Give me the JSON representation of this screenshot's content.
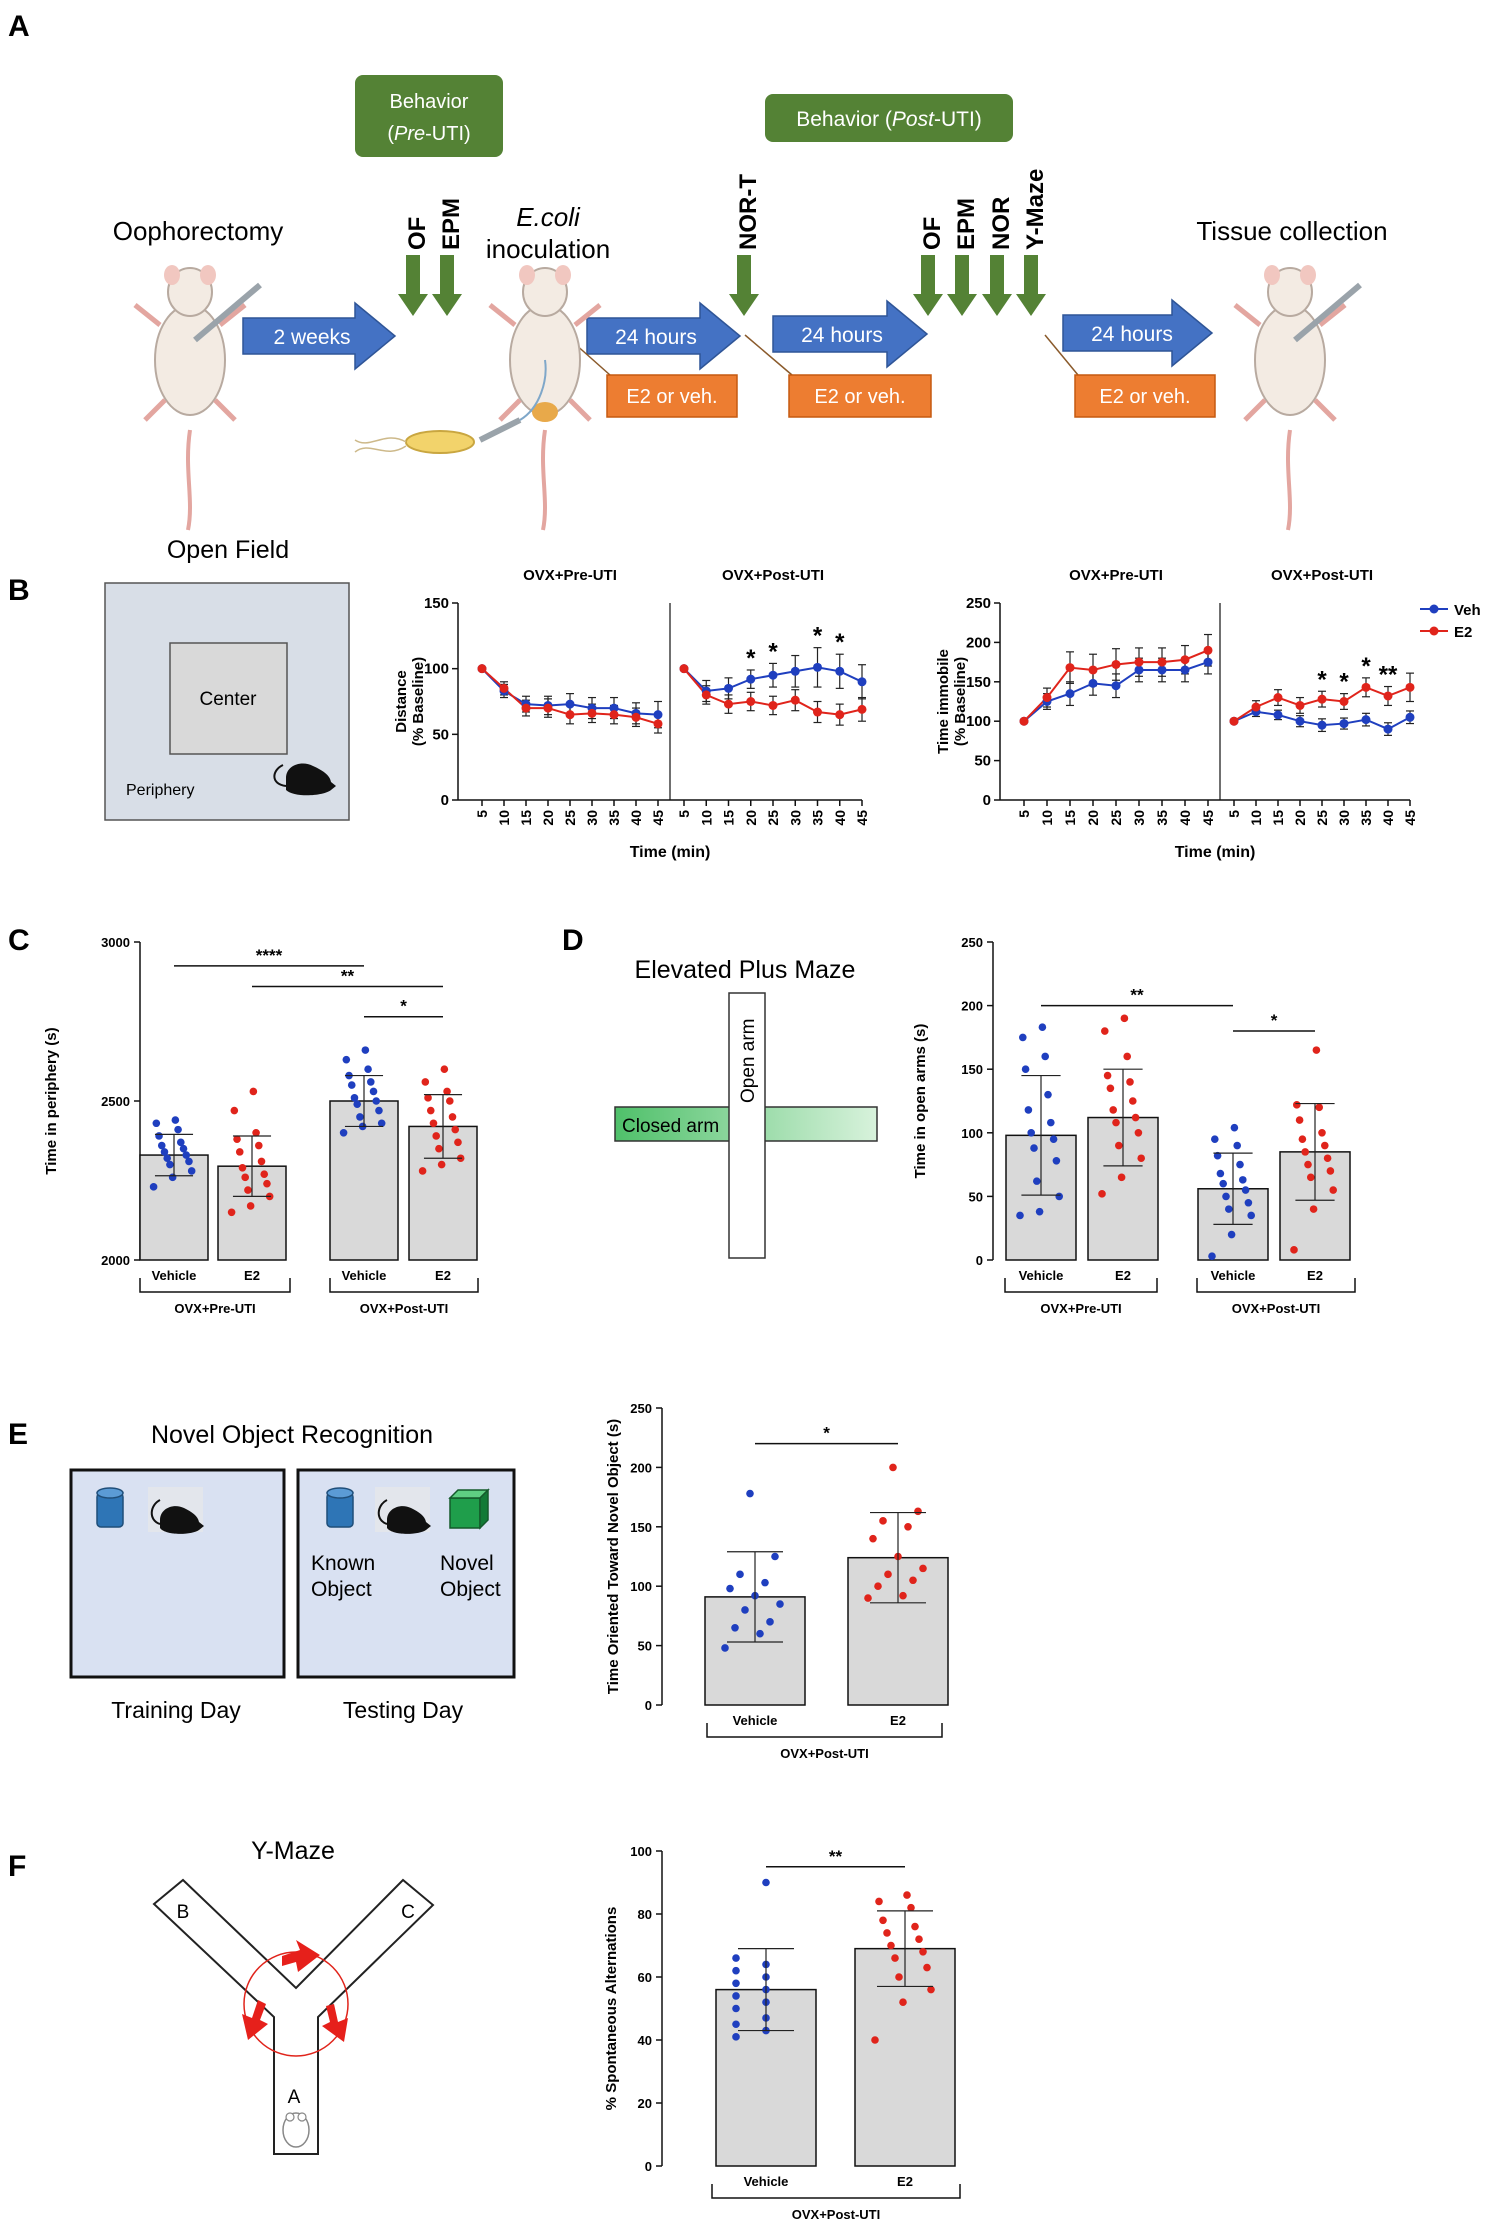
{
  "panels": {
    "A": "A",
    "B": "B",
    "C": "C",
    "D": "D",
    "E": "E",
    "F": "F"
  },
  "timeline": {
    "behavior_pre": [
      "Behavior",
      "(",
      "Pre",
      "-UTI)"
    ],
    "behavior_post": [
      "Behavior (",
      "Post",
      "-UTI)"
    ],
    "oophorectomy": "Oophorectomy",
    "ecoli": "E.coli",
    "inoculation": "inoculation",
    "tissue": "Tissue collection",
    "two_weeks": "2 weeks",
    "h24": "24 hours",
    "e2veh": "E2 or veh.",
    "tests_pre": [
      "OF",
      "EPM"
    ],
    "nort": "NOR-T",
    "tests_post": [
      "OF",
      "EPM",
      "NOR",
      "Y-Maze"
    ]
  },
  "open_field": {
    "title": "Open Field",
    "center": "Center",
    "periphery": "Periphery"
  },
  "epm": {
    "title": "Elevated Plus Maze",
    "open_arm": "Open arm",
    "closed_arm": "Closed arm"
  },
  "nor": {
    "title": "Novel Object Recognition",
    "training": "Training Day",
    "testing": "Testing Day",
    "known": [
      "Known",
      "Object"
    ],
    "novel": [
      "Novel",
      "Object"
    ]
  },
  "ymaze": {
    "title": "Y-Maze",
    "arms": [
      "A",
      "B",
      "C"
    ]
  },
  "colors": {
    "veh": "#1f3fbf",
    "e2": "#e0241b",
    "bar": "#d9d9d9",
    "green_box": "#548235",
    "arrow_blue": "#4472c4",
    "orange_box": "#ed7d31"
  },
  "chart_data": [
    {
      "id": "distance",
      "type": "line",
      "ylabel": [
        "Distance",
        "(% Baseline)"
      ],
      "xlabel": "Time (min)",
      "ylim": [
        0,
        150
      ],
      "yticks": [
        0,
        50,
        100,
        150
      ],
      "sections": [
        "OVX+Pre-UTI",
        "OVX+Post-UTI"
      ],
      "x": [
        5,
        10,
        15,
        20,
        25,
        30,
        35,
        40,
        45
      ],
      "series": [
        {
          "name": "Veh",
          "color": "#1f3fbf",
          "values": [
            [
              100,
              83,
              73,
              72,
              73,
              70,
              70,
              66,
              65
            ],
            [
              100,
              83,
              85,
              92,
              95,
              98,
              101,
              98,
              90
            ]
          ],
          "err": [
            [
              0,
              5,
              6,
              7,
              8,
              8,
              8,
              8,
              10
            ],
            [
              0,
              8,
              8,
              7,
              9,
              12,
              15,
              13,
              13
            ]
          ]
        },
        {
          "name": "E2",
          "color": "#e0241b",
          "values": [
            [
              100,
              85,
              70,
              70,
              65,
              66,
              65,
              63,
              58
            ],
            [
              100,
              80,
              73,
              75,
              72,
              76,
              67,
              65,
              69
            ]
          ],
          "err": [
            [
              0,
              5,
              6,
              7,
              7,
              7,
              7,
              7,
              7
            ],
            [
              0,
              7,
              7,
              7,
              7,
              8,
              8,
              8,
              9
            ]
          ]
        }
      ],
      "significance": [
        [],
        [
          "",
          "",
          "",
          "*",
          "*",
          "",
          "*",
          "*",
          ""
        ]
      ]
    },
    {
      "id": "immobile",
      "type": "line",
      "ylabel": [
        "Time immobile",
        "(% Baseline)"
      ],
      "xlabel": "Time (min)",
      "ylim": [
        0,
        250
      ],
      "yticks": [
        0,
        50,
        100,
        150,
        200,
        250
      ],
      "sections": [
        "OVX+Pre-UTI",
        "OVX+Post-UTI"
      ],
      "legend": [
        "Veh",
        "E2"
      ],
      "x": [
        5,
        10,
        15,
        20,
        25,
        30,
        35,
        40,
        45
      ],
      "series": [
        {
          "name": "Veh",
          "color": "#1f3fbf",
          "values": [
            [
              100,
              125,
              135,
              148,
              145,
              165,
              165,
              165,
              175
            ],
            [
              100,
              112,
              108,
              100,
              95,
              97,
              102,
              90,
              105
            ]
          ],
          "err": [
            [
              0,
              10,
              15,
              15,
              15,
              15,
              15,
              15,
              15
            ],
            [
              0,
              6,
              6,
              7,
              8,
              7,
              8,
              8,
              8
            ]
          ]
        },
        {
          "name": "E2",
          "color": "#e0241b",
          "values": [
            [
              100,
              130,
              168,
              165,
              172,
              175,
              175,
              178,
              190
            ],
            [
              100,
              118,
              130,
              120,
              128,
              125,
              143,
              132,
              143
            ]
          ],
          "err": [
            [
              0,
              12,
              20,
              20,
              20,
              18,
              18,
              18,
              20
            ],
            [
              0,
              8,
              10,
              10,
              10,
              10,
              12,
              12,
              18
            ]
          ]
        }
      ],
      "significance": [
        [],
        [
          "",
          "",
          "",
          "",
          "*",
          "*",
          "*",
          "**",
          ""
        ]
      ]
    },
    {
      "id": "periphery",
      "type": "bar",
      "ylabel": "Time in periphery (s)",
      "ylim": [
        2000,
        3000
      ],
      "yticks": [
        2000,
        2500,
        3000
      ],
      "categories": [
        "Vehicle",
        "E2",
        "Vehicle",
        "E2"
      ],
      "groups": [
        "OVX+Pre-UTI",
        "OVX+Post-UTI"
      ],
      "values": [
        2330,
        2295,
        2500,
        2420
      ],
      "sd": [
        65,
        95,
        80,
        100
      ],
      "point_colors": [
        "#1f3fbf",
        "#e0241b",
        "#1f3fbf",
        "#e0241b"
      ],
      "points": [
        [
          2230,
          2260,
          2280,
          2300,
          2310,
          2320,
          2330,
          2340,
          2350,
          2360,
          2370,
          2390,
          2410,
          2430,
          2440
        ],
        [
          2150,
          2170,
          2200,
          2220,
          2240,
          2260,
          2270,
          2290,
          2310,
          2340,
          2360,
          2380,
          2400,
          2470,
          2530
        ],
        [
          2400,
          2420,
          2430,
          2450,
          2470,
          2490,
          2500,
          2510,
          2530,
          2550,
          2560,
          2580,
          2600,
          2630,
          2660
        ],
        [
          2280,
          2300,
          2320,
          2350,
          2370,
          2390,
          2410,
          2430,
          2450,
          2470,
          2500,
          2510,
          2530,
          2560,
          2600
        ]
      ],
      "brackets": [
        {
          "from": 0,
          "to": 2,
          "label": "****",
          "y": 2925
        },
        {
          "from": 1,
          "to": 3,
          "label": "**",
          "y": 2860
        },
        {
          "from": 2,
          "to": 3,
          "label": "*",
          "y": 2765
        }
      ]
    },
    {
      "id": "openarms",
      "type": "bar",
      "ylabel": "Time in open arms (s)",
      "ylim": [
        0,
        250
      ],
      "yticks": [
        0,
        50,
        100,
        150,
        200,
        250
      ],
      "categories": [
        "Vehicle",
        "E2",
        "Vehicle",
        "E2"
      ],
      "groups": [
        "OVX+Pre-UTI",
        "OVX+Post-UTI"
      ],
      "values": [
        98,
        112,
        56,
        85
      ],
      "sd": [
        47,
        38,
        28,
        38
      ],
      "point_colors": [
        "#1f3fbf",
        "#e0241b",
        "#1f3fbf",
        "#e0241b"
      ],
      "points": [
        [
          35,
          38,
          50,
          62,
          78,
          88,
          95,
          100,
          108,
          118,
          130,
          150,
          160,
          175,
          183
        ],
        [
          52,
          65,
          80,
          90,
          100,
          108,
          112,
          118,
          125,
          135,
          140,
          145,
          160,
          180,
          190
        ],
        [
          3,
          20,
          35,
          40,
          45,
          50,
          55,
          60,
          63,
          68,
          75,
          82,
          90,
          95,
          104
        ],
        [
          8,
          40,
          55,
          65,
          70,
          75,
          80,
          85,
          90,
          95,
          100,
          110,
          120,
          122,
          165
        ]
      ],
      "brackets": [
        {
          "from": 0,
          "to": 2,
          "label": "**",
          "y": 200
        },
        {
          "from": 2,
          "to": 3,
          "label": "*",
          "y": 180
        }
      ]
    },
    {
      "id": "nor",
      "type": "bar",
      "ylabel": "Time Oriented Toward Novel Object (s)",
      "ylim": [
        0,
        250
      ],
      "yticks": [
        0,
        50,
        100,
        150,
        200,
        250
      ],
      "categories": [
        "Vehicle",
        "E2"
      ],
      "groups": [
        "OVX+Post-UTI"
      ],
      "values": [
        91,
        124
      ],
      "sd": [
        38,
        38
      ],
      "point_colors": [
        "#1f3fbf",
        "#e0241b"
      ],
      "points": [
        [
          48,
          60,
          65,
          70,
          80,
          85,
          92,
          98,
          103,
          110,
          125,
          178
        ],
        [
          90,
          92,
          100,
          105,
          110,
          115,
          125,
          140,
          150,
          155,
          163,
          200
        ]
      ],
      "brackets": [
        {
          "from": 0,
          "to": 1,
          "label": "*",
          "y": 220
        }
      ]
    },
    {
      "id": "ymaze",
      "type": "bar",
      "ylabel": "% Spontaneous Alternations",
      "ylim": [
        0,
        100
      ],
      "yticks": [
        0,
        20,
        40,
        60,
        80,
        100
      ],
      "categories": [
        "Vehicle",
        "E2"
      ],
      "groups": [
        "OVX+Post-UTI"
      ],
      "values": [
        56,
        69
      ],
      "sd": [
        13,
        12
      ],
      "point_colors": [
        "#1f3fbf",
        "#e0241b"
      ],
      "points": [
        [
          41,
          43,
          45,
          47,
          50,
          52,
          54,
          56,
          58,
          60,
          62,
          64,
          66,
          90
        ],
        [
          40,
          52,
          56,
          60,
          63,
          66,
          68,
          70,
          72,
          74,
          76,
          78,
          82,
          84,
          86
        ]
      ],
      "brackets": [
        {
          "from": 0,
          "to": 1,
          "label": "**",
          "y": 95
        }
      ]
    }
  ]
}
